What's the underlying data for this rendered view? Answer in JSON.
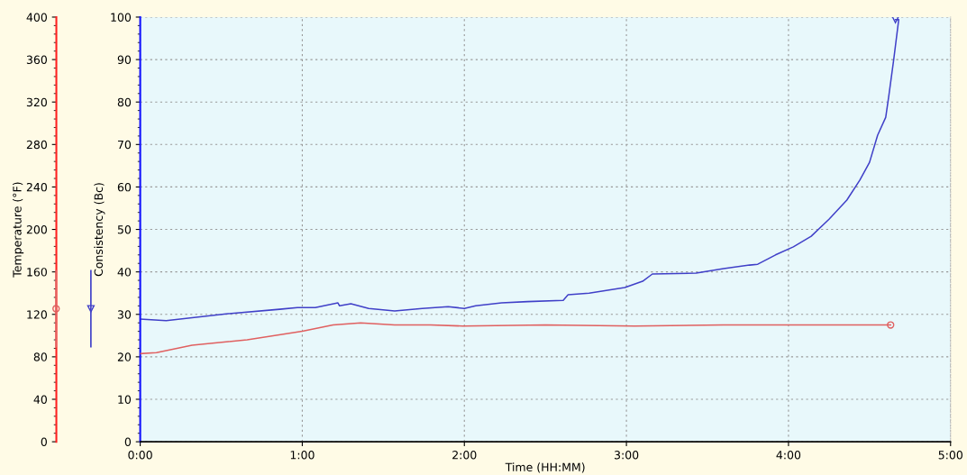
{
  "chart_data": {
    "type": "line",
    "xlabel": "Time (HH:MM)",
    "ylabel": "Consistency (Bc)",
    "y2label": "Temperature (°F)",
    "xlim": [
      0,
      5
    ],
    "xticks": [
      {
        "value": 0,
        "label": "0:00"
      },
      {
        "value": 1,
        "label": "1:00"
      },
      {
        "value": 2,
        "label": "2:00"
      },
      {
        "value": 3,
        "label": "3:00"
      },
      {
        "value": 4,
        "label": "4:00"
      },
      {
        "value": 5,
        "label": "5:00"
      }
    ],
    "ylim": [
      0,
      100
    ],
    "yticks": [
      0,
      10,
      20,
      30,
      40,
      50,
      60,
      70,
      80,
      90,
      100
    ],
    "y2lim": [
      0,
      400
    ],
    "y2ticks": [
      0,
      40,
      80,
      120,
      160,
      200,
      240,
      280,
      320,
      360,
      400
    ],
    "grid": true,
    "line_style": "solid",
    "series": [
      {
        "color": "#4040c8",
        "x": [
          0,
          0.16,
          0.53,
          0.86,
          0.97,
          1.08,
          1.22,
          1.23,
          1.3,
          1.41,
          1.57,
          1.74,
          1.9,
          2.0,
          2.07,
          2.23,
          2.39,
          2.61,
          2.64,
          2.77,
          2.99,
          3.1,
          3.16,
          3.43,
          3.6,
          3.76,
          3.81,
          3.92,
          4.03,
          4.14,
          4.25,
          4.36,
          4.44,
          4.5,
          4.55,
          4.6,
          4.62,
          4.65,
          4.68,
          4.66
        ],
        "values": [
          28.9,
          28.5,
          30.1,
          31.2,
          31.6,
          31.6,
          32.7,
          32.0,
          32.5,
          31.4,
          30.8,
          31.4,
          31.8,
          31.4,
          32.0,
          32.7,
          33.0,
          33.3,
          34.6,
          35.0,
          36.3,
          37.8,
          39.5,
          39.7,
          40.8,
          41.6,
          41.8,
          44.0,
          45.9,
          48.4,
          52.4,
          56.9,
          61.6,
          65.8,
          72.2,
          76.4,
          81.7,
          90.2,
          99.4,
          99.4
        ]
      },
      {
        "color": "#e06060",
        "axis": "y2",
        "x": [
          0,
          0.1,
          0.32,
          0.66,
          1.0,
          1.19,
          1.36,
          1.57,
          1.79,
          1.99,
          2.5,
          3.05,
          3.6,
          4.63
        ],
        "values": [
          83,
          84,
          91,
          96,
          104,
          110,
          112,
          110,
          110,
          109,
          110,
          109,
          110,
          110
        ]
      }
    ]
  }
}
